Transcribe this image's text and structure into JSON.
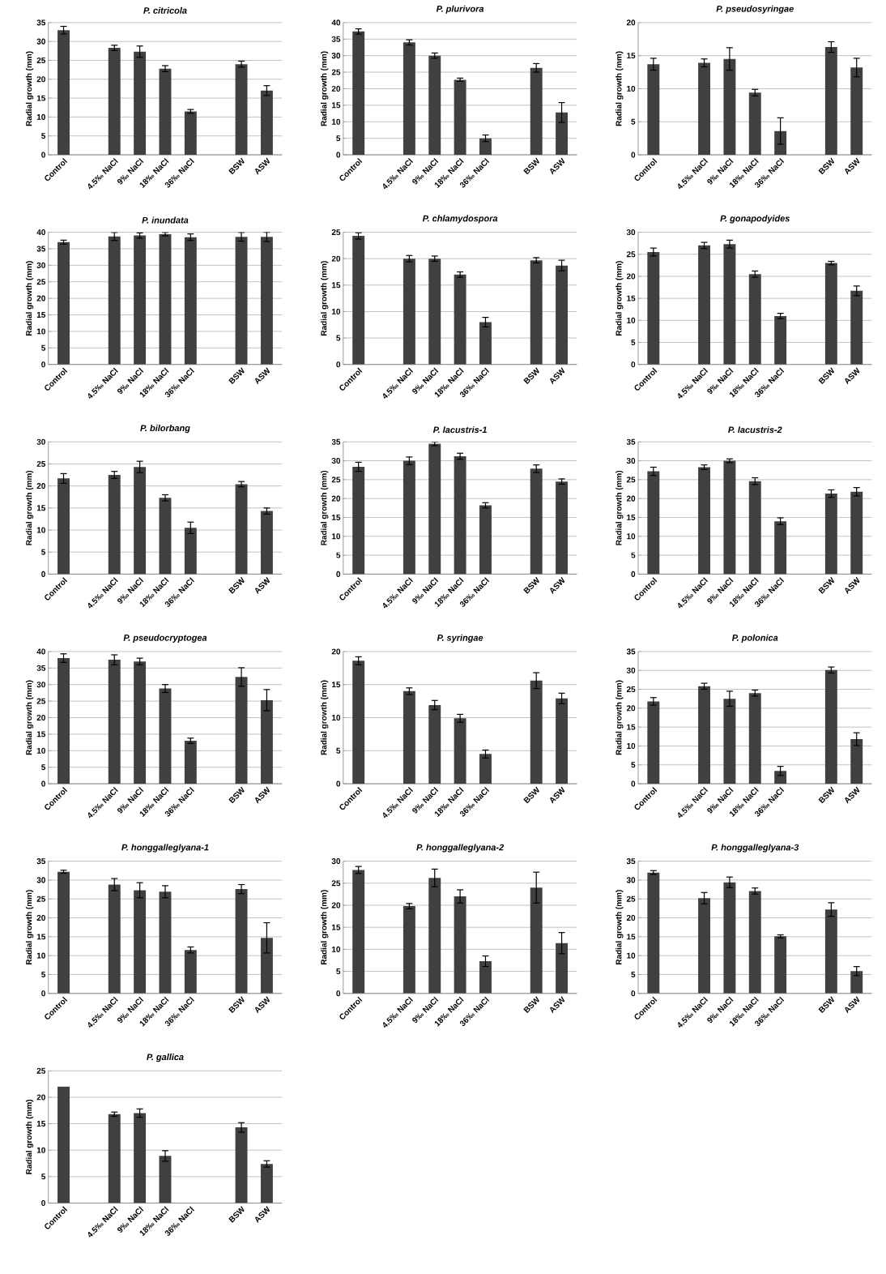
{
  "chart_data": [
    {
      "type": "bar",
      "title": "P. citricola",
      "ylabel": "Radial growth (mm)",
      "categories": [
        "Control",
        null,
        "4.5‰ NaCl",
        "9‰ NaCl",
        "18‰ NaCl",
        "36‰ NaCl",
        null,
        "BSW",
        "ASW"
      ],
      "values": [
        33,
        null,
        28.3,
        27.3,
        22.8,
        11.5,
        null,
        24,
        17
      ],
      "errors": [
        1,
        null,
        0.7,
        1.5,
        0.8,
        0.5,
        null,
        0.8,
        1.3
      ],
      "color": "#404040",
      "ylim": [
        0,
        35
      ],
      "yticks": [
        0,
        5,
        10,
        15,
        20,
        25,
        30,
        35
      ],
      "grid": "y"
    },
    {
      "type": "bar",
      "title": "P. plurivora",
      "ylabel": "Radial growth (mm)",
      "categories": [
        "Control",
        null,
        "4.5‰ NaCl",
        "9‰ NaCl",
        "18‰ NaCl",
        "36‰ NaCl",
        null,
        "BSW",
        "ASW"
      ],
      "values": [
        37.3,
        null,
        34,
        30,
        22.7,
        5,
        null,
        26.3,
        12.8
      ],
      "errors": [
        0.8,
        null,
        0.8,
        0.8,
        0.5,
        1,
        null,
        1.3,
        3
      ],
      "color": "#404040",
      "ylim": [
        0,
        40
      ],
      "yticks": [
        0,
        5,
        10,
        15,
        20,
        25,
        30,
        35,
        40
      ],
      "grid": "y"
    },
    {
      "type": "bar",
      "title": "P. pseudosyringae",
      "ylabel": "Radial growth (mm)",
      "categories": [
        "Control",
        null,
        "4.5‰ NaCl",
        "9‰ NaCl",
        "18‰ NaCl",
        "36‰ NaCl",
        null,
        "BSW",
        "ASW"
      ],
      "values": [
        13.7,
        null,
        13.9,
        14.5,
        9.4,
        3.6,
        null,
        16.3,
        13.2
      ],
      "errors": [
        0.9,
        null,
        0.6,
        1.7,
        0.5,
        2,
        null,
        0.8,
        1.4
      ],
      "color": "#404040",
      "ylim": [
        0,
        20
      ],
      "yticks": [
        0,
        5,
        10,
        15,
        20
      ],
      "grid": "y"
    },
    {
      "type": "bar",
      "title": "P. inundata",
      "ylabel": "Radial growth (mm)",
      "categories": [
        "Control",
        null,
        "4.5‰ NaCl",
        "9‰ NaCl",
        "18‰ NaCl",
        "36‰ NaCl",
        null,
        "BSW",
        "ASW"
      ],
      "values": [
        37,
        null,
        38.7,
        39,
        39.4,
        38.5,
        null,
        38.6,
        38.6
      ],
      "errors": [
        0.6,
        null,
        1.2,
        0.8,
        0.5,
        1,
        null,
        1.3,
        1.4
      ],
      "color": "#404040",
      "ylim": [
        0,
        40
      ],
      "yticks": [
        0,
        5,
        10,
        15,
        20,
        25,
        30,
        35,
        40
      ],
      "grid": "y"
    },
    {
      "type": "bar",
      "title": "P. chlamydospora",
      "ylabel": "Radial growth (mm)",
      "categories": [
        "Control",
        null,
        "4.5‰ NaCl",
        "9‰ NaCl",
        "18‰ NaCl",
        "36‰ NaCl",
        null,
        "BSW",
        "ASW"
      ],
      "values": [
        24.3,
        null,
        20,
        20,
        17,
        8,
        null,
        19.7,
        18.7
      ],
      "errors": [
        0.6,
        null,
        0.6,
        0.5,
        0.5,
        0.9,
        null,
        0.5,
        1
      ],
      "color": "#404040",
      "ylim": [
        0,
        25
      ],
      "yticks": [
        0,
        5,
        10,
        15,
        20,
        25
      ],
      "grid": "y"
    },
    {
      "type": "bar",
      "title": "P. gonapodyides",
      "ylabel": "Radial growth (mm)",
      "categories": [
        "Control",
        null,
        "4.5‰ NaCl",
        "9‰ NaCl",
        "18‰ NaCl",
        "36‰ NaCl",
        null,
        "BSW",
        "ASW"
      ],
      "values": [
        25.5,
        null,
        27,
        27.3,
        20.5,
        11,
        null,
        23,
        16.7
      ],
      "errors": [
        0.9,
        null,
        0.7,
        0.9,
        0.7,
        0.6,
        null,
        0.4,
        1.1
      ],
      "color": "#404040",
      "ylim": [
        0,
        30
      ],
      "yticks": [
        0,
        5,
        10,
        15,
        20,
        25,
        30
      ],
      "grid": "y"
    },
    {
      "type": "bar",
      "title": "P. bilorbang",
      "ylabel": "Radial growth (mm)",
      "categories": [
        "Control",
        null,
        "4.5‰ NaCl",
        "9‰ NaCl",
        "18‰ NaCl",
        "36‰ NaCl",
        null,
        "BSW",
        "ASW"
      ],
      "values": [
        21.7,
        null,
        22.5,
        24.3,
        17.3,
        10.5,
        null,
        20.4,
        14.3
      ],
      "errors": [
        1.1,
        null,
        0.8,
        1.3,
        0.7,
        1.3,
        null,
        0.6,
        0.7
      ],
      "color": "#404040",
      "ylim": [
        0,
        30
      ],
      "yticks": [
        0,
        5,
        10,
        15,
        20,
        25,
        30
      ],
      "grid": "y"
    },
    {
      "type": "bar",
      "title": "P. lacustris-1",
      "ylabel": "Radial growth (mm)",
      "categories": [
        "Control",
        null,
        "4.5‰ NaCl",
        "9‰ NaCl",
        "18‰ NaCl",
        "36‰ NaCl",
        null,
        "BSW",
        "ASW"
      ],
      "values": [
        28.4,
        null,
        30,
        34.5,
        31.2,
        18.2,
        null,
        27.9,
        24.5
      ],
      "errors": [
        1.2,
        null,
        1,
        0.5,
        0.8,
        0.7,
        null,
        1,
        0.7
      ],
      "color": "#404040",
      "ylim": [
        0,
        35
      ],
      "yticks": [
        0,
        5,
        10,
        15,
        20,
        25,
        30,
        35
      ],
      "grid": "y"
    },
    {
      "type": "bar",
      "title": "P. lacustris-2",
      "ylabel": "Radial growth (mm)",
      "categories": [
        "Control",
        null,
        "4.5‰ NaCl",
        "9‰ NaCl",
        "18‰ NaCl",
        "36‰ NaCl",
        null,
        "BSW",
        "ASW"
      ],
      "values": [
        27.2,
        null,
        28.3,
        30,
        24.6,
        14,
        null,
        21.3,
        21.8
      ],
      "errors": [
        1.1,
        null,
        0.6,
        0.5,
        0.9,
        0.9,
        null,
        1,
        1.1
      ],
      "color": "#404040",
      "ylim": [
        0,
        35
      ],
      "yticks": [
        0,
        5,
        10,
        15,
        20,
        25,
        30,
        35
      ],
      "grid": "y"
    },
    {
      "type": "bar",
      "title": "P. pseudocryptogea",
      "ylabel": "Radial growth (mm)",
      "categories": [
        "Control",
        null,
        "4.5‰ NaCl",
        "9‰ NaCl",
        "18‰ NaCl",
        "36‰ NaCl",
        null,
        "BSW",
        "ASW"
      ],
      "values": [
        38,
        null,
        37.5,
        37,
        28.8,
        13,
        null,
        32.3,
        25.3
      ],
      "errors": [
        1.3,
        null,
        1.5,
        1,
        1.2,
        0.8,
        null,
        2.8,
        3.2
      ],
      "color": "#404040",
      "ylim": [
        0,
        40
      ],
      "yticks": [
        0,
        5,
        10,
        15,
        20,
        25,
        30,
        35,
        40
      ],
      "grid": "y"
    },
    {
      "type": "bar",
      "title": "P. syringae",
      "ylabel": "Radial growth (mm)",
      "categories": [
        "Control",
        null,
        "4.5‰ NaCl",
        "9‰ NaCl",
        "18‰ NaCl",
        "36‰ NaCl",
        null,
        "BSW",
        "ASW"
      ],
      "values": [
        18.6,
        null,
        14,
        11.9,
        9.9,
        4.5,
        null,
        15.6,
        12.9
      ],
      "errors": [
        0.6,
        null,
        0.5,
        0.7,
        0.6,
        0.6,
        null,
        1.2,
        0.8
      ],
      "color": "#404040",
      "ylim": [
        0,
        20
      ],
      "yticks": [
        0,
        5,
        10,
        15,
        20
      ],
      "grid": "y"
    },
    {
      "type": "bar",
      "title": "P. polonica",
      "ylabel": "Radial growth (mm)",
      "categories": [
        "Control",
        null,
        "4.5‰ NaCl",
        "9‰ NaCl",
        "18‰ NaCl",
        "36‰ NaCl",
        null,
        "BSW",
        "ASW"
      ],
      "values": [
        21.8,
        null,
        25.8,
        22.5,
        24,
        3.4,
        null,
        30.1,
        11.8
      ],
      "errors": [
        1,
        null,
        0.8,
        2,
        0.8,
        1.2,
        null,
        0.8,
        1.7
      ],
      "color": "#404040",
      "ylim": [
        0,
        35
      ],
      "yticks": [
        0,
        5,
        10,
        15,
        20,
        25,
        30,
        35
      ],
      "grid": "y"
    },
    {
      "type": "bar",
      "title": "P. honggalleglyana-1",
      "ylabel": "Radial growth (mm)",
      "categories": [
        "Control",
        null,
        "4.5‰ NaCl",
        "9‰ NaCl",
        "18‰ NaCl",
        "36‰ NaCl",
        null,
        "BSW",
        "ASW"
      ],
      "values": [
        32.2,
        null,
        28.8,
        27.3,
        26.9,
        11.5,
        null,
        27.6,
        14.7
      ],
      "errors": [
        0.4,
        null,
        1.6,
        2,
        1.6,
        0.8,
        null,
        1.2,
        4
      ],
      "color": "#404040",
      "ylim": [
        0,
        35
      ],
      "yticks": [
        0,
        5,
        10,
        15,
        20,
        25,
        30,
        35
      ],
      "grid": "y"
    },
    {
      "type": "bar",
      "title": "P. honggalleglyana-2",
      "ylabel": "Radial growth (mm)",
      "categories": [
        "Control",
        null,
        "4.5‰ NaCl",
        "9‰ NaCl",
        "18‰ NaCl",
        "36‰ NaCl",
        null,
        "BSW",
        "ASW"
      ],
      "values": [
        28,
        null,
        19.8,
        26.2,
        22,
        7.3,
        null,
        24,
        11.4
      ],
      "errors": [
        0.8,
        null,
        0.6,
        2,
        1.5,
        1.2,
        null,
        3.5,
        2.4
      ],
      "color": "#404040",
      "ylim": [
        0,
        30
      ],
      "yticks": [
        0,
        5,
        10,
        15,
        20,
        25,
        30
      ],
      "grid": "y"
    },
    {
      "type": "bar",
      "title": "P. honggalleglyana-3",
      "ylabel": "Radial growth (mm)",
      "categories": [
        "Control",
        null,
        "4.5‰ NaCl",
        "9‰ NaCl",
        "18‰ NaCl",
        "36‰ NaCl",
        null,
        "BSW",
        "ASW"
      ],
      "values": [
        32,
        null,
        25.2,
        29.4,
        27.1,
        15.1,
        null,
        22.2,
        5.9
      ],
      "errors": [
        0.5,
        null,
        1.5,
        1.4,
        0.8,
        0.4,
        null,
        1.8,
        1.2
      ],
      "color": "#404040",
      "ylim": [
        0,
        35
      ],
      "yticks": [
        0,
        5,
        10,
        15,
        20,
        25,
        30,
        35
      ],
      "grid": "y"
    },
    {
      "type": "bar",
      "title": "P. gallica",
      "ylabel": "Radial growth (mm)",
      "categories": [
        "Control",
        null,
        "4.5‰ NaCl",
        "9‰ NaCl",
        "18‰ NaCl",
        "36‰ NaCl",
        null,
        "BSW",
        "ASW"
      ],
      "values": [
        22,
        null,
        16.8,
        17,
        8.9,
        null,
        null,
        14.3,
        7.4
      ],
      "errors": [
        null,
        null,
        0.4,
        0.8,
        1,
        null,
        null,
        0.9,
        0.6
      ],
      "color": "#404040",
      "ylim": [
        0,
        25
      ],
      "yticks": [
        0,
        5,
        10,
        15,
        20,
        25
      ],
      "grid": "y"
    }
  ]
}
